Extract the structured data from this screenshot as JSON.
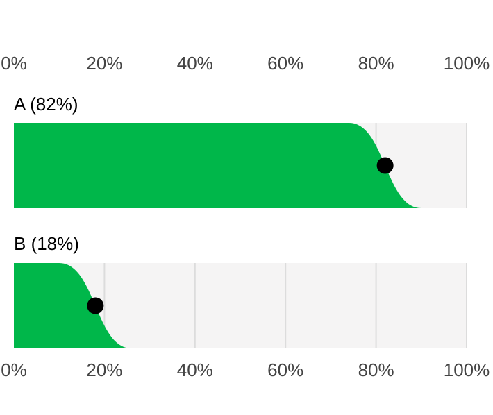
{
  "chart_data": {
    "type": "bar",
    "categories": [
      "A (82%)",
      "B (18%)"
    ],
    "values": [
      82,
      18
    ],
    "color": "#00b74a",
    "marker_color": "#000000",
    "background_color": "#f5f4f4",
    "xlim": [
      0,
      100
    ],
    "xticks": [
      {
        "value": 0,
        "label": "0%"
      },
      {
        "value": 20,
        "label": "20%"
      },
      {
        "value": 40,
        "label": "40%"
      },
      {
        "value": 60,
        "label": "60%"
      },
      {
        "value": 80,
        "label": "80%"
      },
      {
        "value": 100,
        "label": "100%"
      }
    ],
    "grid": true
  }
}
